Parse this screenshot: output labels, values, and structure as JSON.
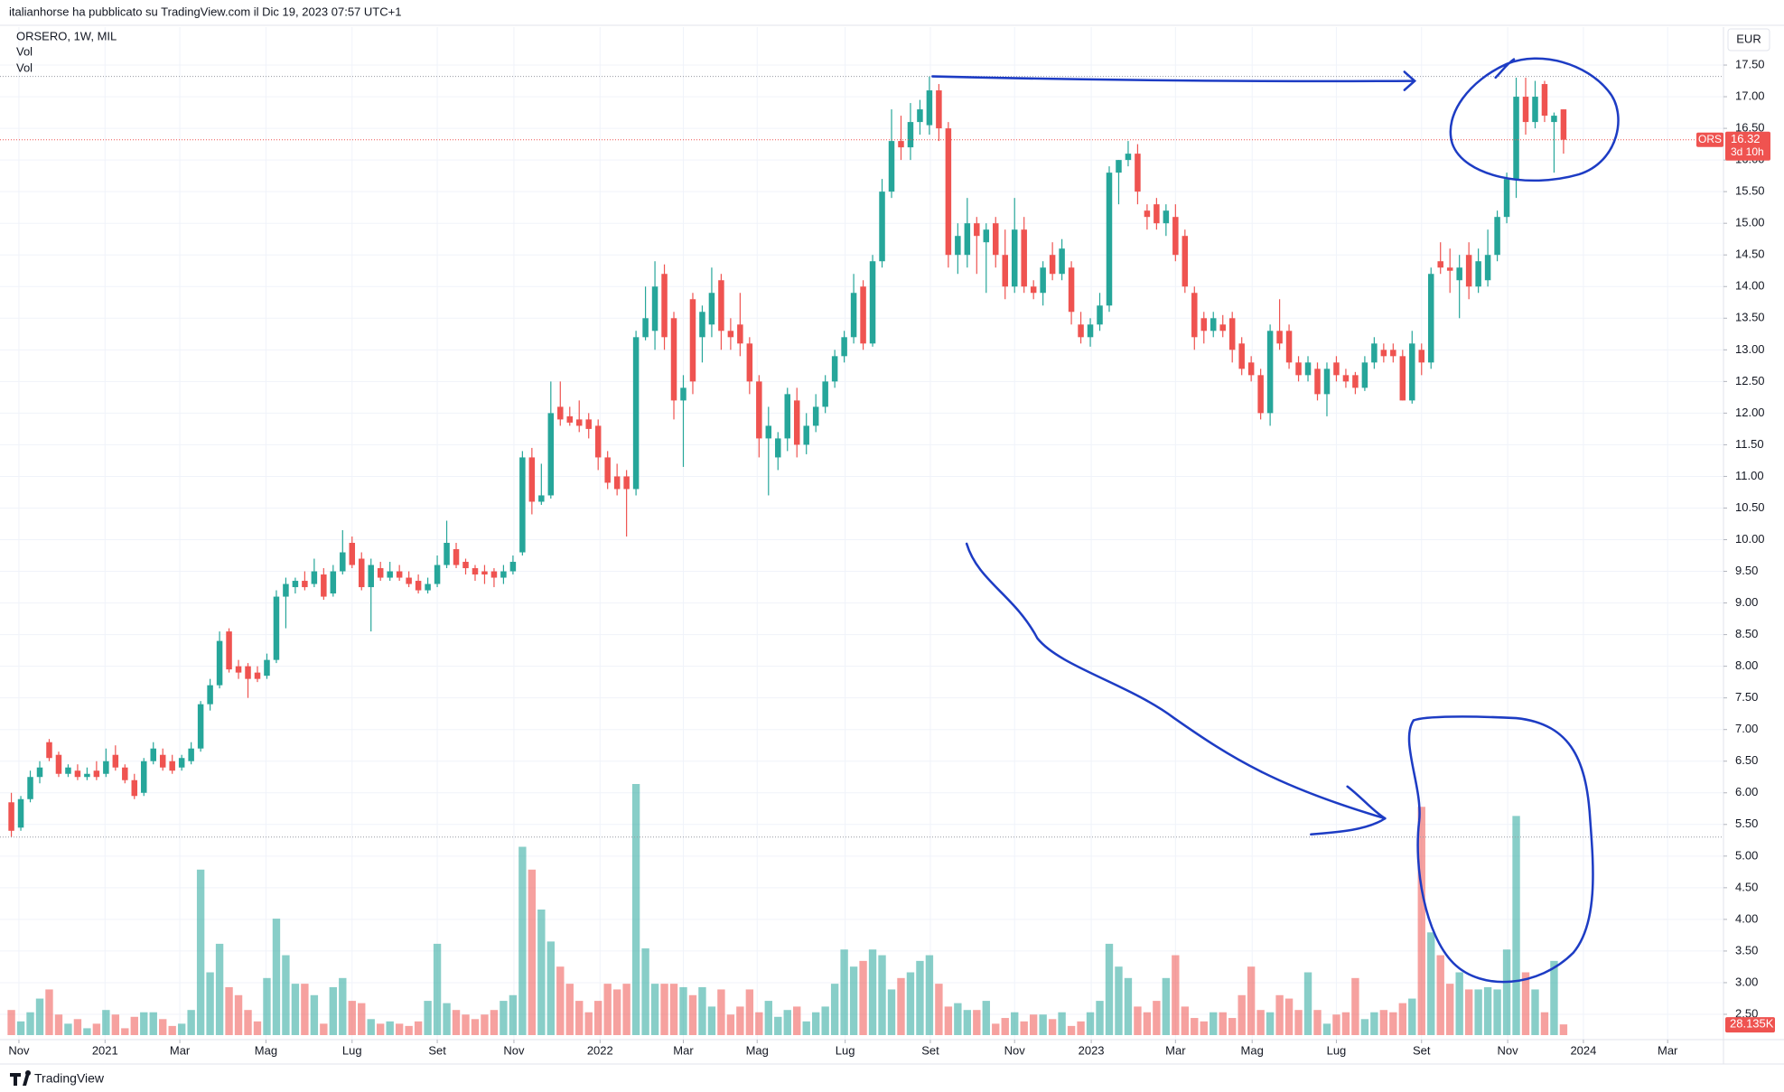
{
  "header": "italianhorse ha pubblicato su TradingView.com il Dic 19, 2023 07:57 UTC+1",
  "footer": "TradingView",
  "chart_data": {
    "type": "candlestick",
    "legend": "ORSERO, 1W, MIL",
    "indicators": [
      "Vol",
      "Vol"
    ],
    "currency": "EUR",
    "symbol": "ORS",
    "countdown": "3d 10h",
    "last_volume_label": "28.135K",
    "up_color": "#26a69a",
    "down_color": "#ef5350",
    "grid": true,
    "ylim": [
      2.1,
      18.1
    ],
    "xlim": [
      -1.2,
      180.9
    ],
    "yticks": [
      {
        "value": 2.5,
        "label": "2.50"
      },
      {
        "value": 3,
        "label": "3.00"
      },
      {
        "value": 3.5,
        "label": "3.50"
      },
      {
        "value": 4,
        "label": "4.00"
      },
      {
        "value": 4.5,
        "label": "4.50"
      },
      {
        "value": 5,
        "label": "5.00"
      },
      {
        "value": 5.5,
        "label": "5.50"
      },
      {
        "value": 6,
        "label": "6.00"
      },
      {
        "value": 6.5,
        "label": "6.50"
      },
      {
        "value": 7,
        "label": "7.00"
      },
      {
        "value": 7.5,
        "label": "7.50"
      },
      {
        "value": 8,
        "label": "8.00"
      },
      {
        "value": 8.5,
        "label": "8.50"
      },
      {
        "value": 9,
        "label": "9.00"
      },
      {
        "value": 9.5,
        "label": "9.50"
      },
      {
        "value": 10,
        "label": "10.00"
      },
      {
        "value": 10.5,
        "label": "10.50"
      },
      {
        "value": 11,
        "label": "11.00"
      },
      {
        "value": 11.5,
        "label": "11.50"
      },
      {
        "value": 12,
        "label": "12.00"
      },
      {
        "value": 12.5,
        "label": "12.50"
      },
      {
        "value": 13,
        "label": "13.00"
      },
      {
        "value": 13.5,
        "label": "13.50"
      },
      {
        "value": 14,
        "label": "14.00"
      },
      {
        "value": 14.5,
        "label": "14.50"
      },
      {
        "value": 15,
        "label": "15.00"
      },
      {
        "value": 15.5,
        "label": "15.50"
      },
      {
        "value": 16,
        "label": "16.00"
      },
      {
        "value": 16.5,
        "label": "16.50"
      },
      {
        "value": 17,
        "label": "17.00"
      },
      {
        "value": 17.5,
        "label": "17.50"
      }
    ],
    "xticks": [
      {
        "value": 0.8,
        "label": "Nov"
      },
      {
        "value": 9.9,
        "label": "2021"
      },
      {
        "value": 17.8,
        "label": "Mar"
      },
      {
        "value": 26.9,
        "label": "Mag"
      },
      {
        "value": 36,
        "label": "Lug"
      },
      {
        "value": 45,
        "label": "Set"
      },
      {
        "value": 53.1,
        "label": "Nov"
      },
      {
        "value": 62.2,
        "label": "2022"
      },
      {
        "value": 71,
        "label": "Mar"
      },
      {
        "value": 78.8,
        "label": "Mag"
      },
      {
        "value": 88.1,
        "label": "Lug"
      },
      {
        "value": 97.1,
        "label": "Set"
      },
      {
        "value": 106,
        "label": "Nov"
      },
      {
        "value": 114.1,
        "label": "2023"
      },
      {
        "value": 123,
        "label": "Mar"
      },
      {
        "value": 131.1,
        "label": "Mag"
      },
      {
        "value": 140,
        "label": "Lug"
      },
      {
        "value": 149,
        "label": "Set"
      },
      {
        "value": 158.1,
        "label": "Nov"
      },
      {
        "value": 166.1,
        "label": "2024"
      },
      {
        "value": 175,
        "label": "Mar"
      }
    ],
    "candles": [
      [
        5.85,
        6.0,
        5.3,
        5.4
      ],
      [
        5.45,
        5.95,
        5.4,
        5.9
      ],
      [
        5.9,
        6.35,
        5.85,
        6.25
      ],
      [
        6.25,
        6.5,
        6.15,
        6.4
      ],
      [
        6.8,
        6.85,
        6.5,
        6.55
      ],
      [
        6.6,
        6.65,
        6.25,
        6.3
      ],
      [
        6.3,
        6.45,
        6.25,
        6.4
      ],
      [
        6.35,
        6.45,
        6.2,
        6.25
      ],
      [
        6.25,
        6.4,
        6.2,
        6.3
      ],
      [
        6.35,
        6.5,
        6.2,
        6.25
      ],
      [
        6.3,
        6.7,
        6.25,
        6.5
      ],
      [
        6.6,
        6.75,
        6.35,
        6.4
      ],
      [
        6.4,
        6.45,
        6.15,
        6.2
      ],
      [
        6.2,
        6.3,
        5.9,
        5.95
      ],
      [
        6.0,
        6.55,
        5.95,
        6.5
      ],
      [
        6.5,
        6.8,
        6.45,
        6.7
      ],
      [
        6.6,
        6.7,
        6.35,
        6.4
      ],
      [
        6.5,
        6.6,
        6.3,
        6.35
      ],
      [
        6.4,
        6.6,
        6.35,
        6.55
      ],
      [
        6.5,
        6.8,
        6.45,
        6.7
      ],
      [
        6.7,
        7.45,
        6.65,
        7.4
      ],
      [
        7.4,
        7.8,
        7.3,
        7.7
      ],
      [
        7.7,
        8.55,
        7.65,
        8.4
      ],
      [
        8.55,
        8.6,
        7.9,
        7.95
      ],
      [
        8.0,
        8.1,
        7.8,
        7.9
      ],
      [
        8.0,
        8.05,
        7.5,
        7.8
      ],
      [
        7.9,
        8.0,
        7.75,
        7.8
      ],
      [
        7.85,
        8.2,
        7.8,
        8.1
      ],
      [
        8.1,
        9.2,
        8.05,
        9.1
      ],
      [
        9.1,
        9.4,
        8.6,
        9.3
      ],
      [
        9.25,
        9.4,
        9.15,
        9.35
      ],
      [
        9.35,
        9.5,
        9.2,
        9.25
      ],
      [
        9.3,
        9.7,
        9.25,
        9.5
      ],
      [
        9.45,
        9.55,
        9.05,
        9.1
      ],
      [
        9.15,
        9.6,
        9.1,
        9.5
      ],
      [
        9.5,
        10.15,
        9.45,
        9.8
      ],
      [
        9.95,
        10.05,
        9.55,
        9.6
      ],
      [
        9.7,
        9.8,
        9.2,
        9.25
      ],
      [
        9.25,
        9.7,
        8.55,
        9.6
      ],
      [
        9.55,
        9.65,
        9.35,
        9.4
      ],
      [
        9.4,
        9.65,
        9.35,
        9.5
      ],
      [
        9.5,
        9.6,
        9.35,
        9.4
      ],
      [
        9.4,
        9.5,
        9.25,
        9.3
      ],
      [
        9.35,
        9.45,
        9.15,
        9.2
      ],
      [
        9.2,
        9.4,
        9.15,
        9.3
      ],
      [
        9.3,
        9.75,
        9.25,
        9.6
      ],
      [
        9.6,
        10.3,
        9.55,
        9.95
      ],
      [
        9.85,
        9.95,
        9.55,
        9.6
      ],
      [
        9.65,
        9.7,
        9.45,
        9.55
      ],
      [
        9.55,
        9.6,
        9.35,
        9.45
      ],
      [
        9.5,
        9.6,
        9.3,
        9.45
      ],
      [
        9.5,
        9.55,
        9.25,
        9.4
      ],
      [
        9.4,
        9.6,
        9.3,
        9.5
      ],
      [
        9.5,
        9.75,
        9.45,
        9.65
      ],
      [
        9.8,
        11.4,
        9.75,
        11.3
      ],
      [
        11.3,
        11.45,
        10.4,
        10.6
      ],
      [
        10.6,
        11.2,
        10.55,
        10.7
      ],
      [
        10.7,
        12.5,
        10.65,
        12.0
      ],
      [
        12.1,
        12.5,
        11.8,
        11.9
      ],
      [
        11.95,
        12.1,
        11.8,
        11.85
      ],
      [
        11.9,
        12.2,
        11.7,
        11.8
      ],
      [
        11.9,
        12.0,
        11.6,
        11.75
      ],
      [
        11.8,
        11.9,
        11.1,
        11.3
      ],
      [
        11.3,
        11.4,
        10.8,
        10.9
      ],
      [
        11.0,
        11.2,
        10.7,
        10.8
      ],
      [
        11.0,
        11.1,
        10.05,
        10.8
      ],
      [
        10.8,
        13.3,
        10.7,
        13.2
      ],
      [
        13.2,
        14.0,
        13.15,
        13.5
      ],
      [
        13.3,
        14.4,
        13.0,
        14.0
      ],
      [
        14.2,
        14.35,
        13.0,
        13.2
      ],
      [
        13.5,
        13.6,
        11.9,
        12.2
      ],
      [
        12.2,
        12.6,
        11.15,
        12.4
      ],
      [
        13.8,
        13.9,
        12.3,
        12.5
      ],
      [
        13.2,
        13.7,
        12.8,
        13.6
      ],
      [
        13.4,
        14.3,
        13.2,
        13.9
      ],
      [
        14.1,
        14.2,
        13.0,
        13.3
      ],
      [
        13.3,
        13.5,
        13.0,
        13.2
      ],
      [
        13.4,
        13.9,
        12.9,
        13.1
      ],
      [
        13.1,
        13.2,
        12.3,
        12.5
      ],
      [
        12.5,
        12.6,
        11.3,
        11.6
      ],
      [
        11.6,
        12.1,
        10.7,
        11.8
      ],
      [
        11.3,
        11.7,
        11.1,
        11.6
      ],
      [
        11.6,
        12.4,
        11.4,
        12.3
      ],
      [
        12.2,
        12.4,
        11.3,
        11.5
      ],
      [
        11.5,
        12.0,
        11.35,
        11.8
      ],
      [
        11.8,
        12.3,
        11.7,
        12.1
      ],
      [
        12.1,
        12.6,
        12.0,
        12.5
      ],
      [
        12.5,
        13.0,
        12.4,
        12.9
      ],
      [
        12.9,
        13.3,
        12.8,
        13.2
      ],
      [
        13.2,
        14.2,
        13.1,
        13.9
      ],
      [
        14.0,
        14.1,
        13.0,
        13.1
      ],
      [
        13.1,
        14.5,
        13.05,
        14.4
      ],
      [
        14.4,
        15.7,
        14.3,
        15.5
      ],
      [
        15.5,
        16.8,
        15.4,
        16.3
      ],
      [
        16.3,
        16.7,
        16.0,
        16.2
      ],
      [
        16.2,
        16.9,
        16.0,
        16.6
      ],
      [
        16.6,
        16.95,
        16.4,
        16.8
      ],
      [
        16.55,
        17.32,
        16.4,
        17.1
      ],
      [
        17.1,
        17.2,
        16.3,
        16.5
      ],
      [
        16.5,
        16.6,
        14.3,
        14.5
      ],
      [
        14.5,
        15.0,
        14.2,
        14.8
      ],
      [
        14.5,
        15.4,
        14.3,
        15.0
      ],
      [
        15.0,
        15.1,
        14.2,
        14.8
      ],
      [
        14.7,
        15.0,
        13.9,
        14.9
      ],
      [
        15.0,
        15.1,
        14.3,
        14.5
      ],
      [
        14.5,
        14.9,
        13.8,
        14.0
      ],
      [
        14.0,
        15.4,
        13.9,
        14.9
      ],
      [
        14.9,
        15.1,
        13.9,
        14.0
      ],
      [
        14.0,
        14.1,
        13.8,
        13.9
      ],
      [
        13.9,
        14.4,
        13.7,
        14.3
      ],
      [
        14.5,
        14.7,
        14.1,
        14.2
      ],
      [
        14.2,
        14.75,
        14.1,
        14.6
      ],
      [
        14.3,
        14.4,
        13.4,
        13.6
      ],
      [
        13.4,
        13.6,
        13.1,
        13.2
      ],
      [
        13.2,
        13.5,
        13.05,
        13.4
      ],
      [
        13.4,
        13.9,
        13.3,
        13.7
      ],
      [
        13.7,
        15.9,
        13.6,
        15.8
      ],
      [
        15.8,
        16.0,
        15.3,
        16.0
      ],
      [
        16.0,
        16.3,
        15.9,
        16.1
      ],
      [
        16.1,
        16.25,
        15.3,
        15.5
      ],
      [
        15.2,
        15.3,
        14.9,
        15.1
      ],
      [
        15.3,
        15.4,
        14.9,
        15.0
      ],
      [
        15.0,
        15.3,
        14.8,
        15.2
      ],
      [
        15.1,
        15.3,
        14.4,
        14.5
      ],
      [
        14.8,
        14.9,
        13.9,
        14.0
      ],
      [
        13.9,
        14.0,
        13.0,
        13.2
      ],
      [
        13.5,
        13.6,
        13.1,
        13.3
      ],
      [
        13.3,
        13.6,
        13.2,
        13.5
      ],
      [
        13.4,
        13.55,
        13.2,
        13.3
      ],
      [
        13.5,
        13.6,
        12.8,
        13.0
      ],
      [
        13.1,
        13.2,
        12.6,
        12.7
      ],
      [
        12.8,
        12.9,
        12.5,
        12.6
      ],
      [
        12.6,
        12.7,
        11.9,
        12.0
      ],
      [
        12.0,
        13.4,
        11.8,
        13.3
      ],
      [
        13.3,
        13.8,
        13.0,
        13.1
      ],
      [
        13.3,
        13.4,
        12.7,
        12.8
      ],
      [
        12.8,
        12.9,
        12.5,
        12.6
      ],
      [
        12.6,
        12.9,
        12.5,
        12.8
      ],
      [
        12.7,
        12.8,
        12.2,
        12.3
      ],
      [
        12.3,
        12.8,
        11.95,
        12.7
      ],
      [
        12.8,
        12.9,
        12.5,
        12.6
      ],
      [
        12.6,
        12.7,
        12.4,
        12.5
      ],
      [
        12.6,
        12.65,
        12.3,
        12.4
      ],
      [
        12.4,
        12.9,
        12.35,
        12.8
      ],
      [
        12.8,
        13.2,
        12.7,
        13.1
      ],
      [
        13.0,
        13.1,
        12.8,
        12.9
      ],
      [
        13.0,
        13.1,
        12.8,
        12.9
      ],
      [
        12.9,
        13.0,
        12.2,
        12.2
      ],
      [
        12.2,
        13.3,
        12.15,
        13.1
      ],
      [
        13.0,
        13.1,
        12.6,
        12.8
      ],
      [
        12.8,
        14.3,
        12.7,
        14.2
      ],
      [
        14.4,
        14.7,
        14.2,
        14.3
      ],
      [
        14.3,
        14.6,
        13.9,
        14.25
      ],
      [
        14.1,
        14.5,
        13.5,
        14.3
      ],
      [
        14.5,
        14.7,
        13.8,
        14.0
      ],
      [
        14.0,
        14.6,
        13.9,
        14.4
      ],
      [
        14.1,
        14.9,
        14.0,
        14.5
      ],
      [
        14.5,
        15.2,
        14.4,
        15.1
      ],
      [
        15.1,
        15.8,
        15.0,
        15.7
      ],
      [
        15.7,
        17.3,
        15.4,
        17.0
      ],
      [
        17.0,
        17.3,
        16.4,
        16.6
      ],
      [
        16.6,
        17.25,
        16.5,
        17.0
      ],
      [
        17.2,
        17.25,
        16.6,
        16.7
      ],
      [
        16.6,
        16.75,
        15.8,
        16.7
      ],
      [
        16.8,
        16.8,
        16.1,
        16.32
      ]
    ],
    "volumes": [
      66000,
      36000,
      60000,
      96000,
      120000,
      54000,
      30000,
      42000,
      18000,
      30000,
      66000,
      54000,
      18000,
      48000,
      60000,
      60000,
      42000,
      24000,
      30000,
      66000,
      435000,
      165000,
      240000,
      126000,
      105000,
      66000,
      36000,
      150000,
      306000,
      210000,
      135000,
      135000,
      105000,
      30000,
      126000,
      150000,
      90000,
      84000,
      42000,
      30000,
      36000,
      30000,
      24000,
      36000,
      90000,
      240000,
      84000,
      66000,
      54000,
      42000,
      54000,
      66000,
      90000,
      105000,
      495000,
      435000,
      330000,
      246000,
      180000,
      135000,
      90000,
      60000,
      90000,
      135000,
      120000,
      135000,
      660000,
      228000,
      135000,
      135000,
      135000,
      126000,
      105000,
      126000,
      75000,
      120000,
      54000,
      75000,
      120000,
      60000,
      90000,
      48000,
      66000,
      75000,
      36000,
      60000,
      75000,
      135000,
      225000,
      180000,
      195000,
      225000,
      210000,
      120000,
      150000,
      165000,
      195000,
      210000,
      135000,
      75000,
      84000,
      66000,
      66000,
      90000,
      30000,
      45000,
      60000,
      36000,
      54000,
      54000,
      42000,
      60000,
      24000,
      36000,
      60000,
      90000,
      240000,
      180000,
      150000,
      75000,
      60000,
      90000,
      150000,
      210000,
      75000,
      45000,
      36000,
      60000,
      60000,
      45000,
      105000,
      180000,
      66000,
      60000,
      105000,
      96000,
      66000,
      165000,
      66000,
      30000,
      54000,
      60000,
      150000,
      42000,
      60000,
      66000,
      60000,
      84000,
      96000,
      600000,
      270000,
      210000,
      135000,
      165000,
      120000,
      120000,
      126000,
      120000,
      225000,
      576000,
      165000,
      120000,
      60000,
      195000,
      28135
    ]
  }
}
